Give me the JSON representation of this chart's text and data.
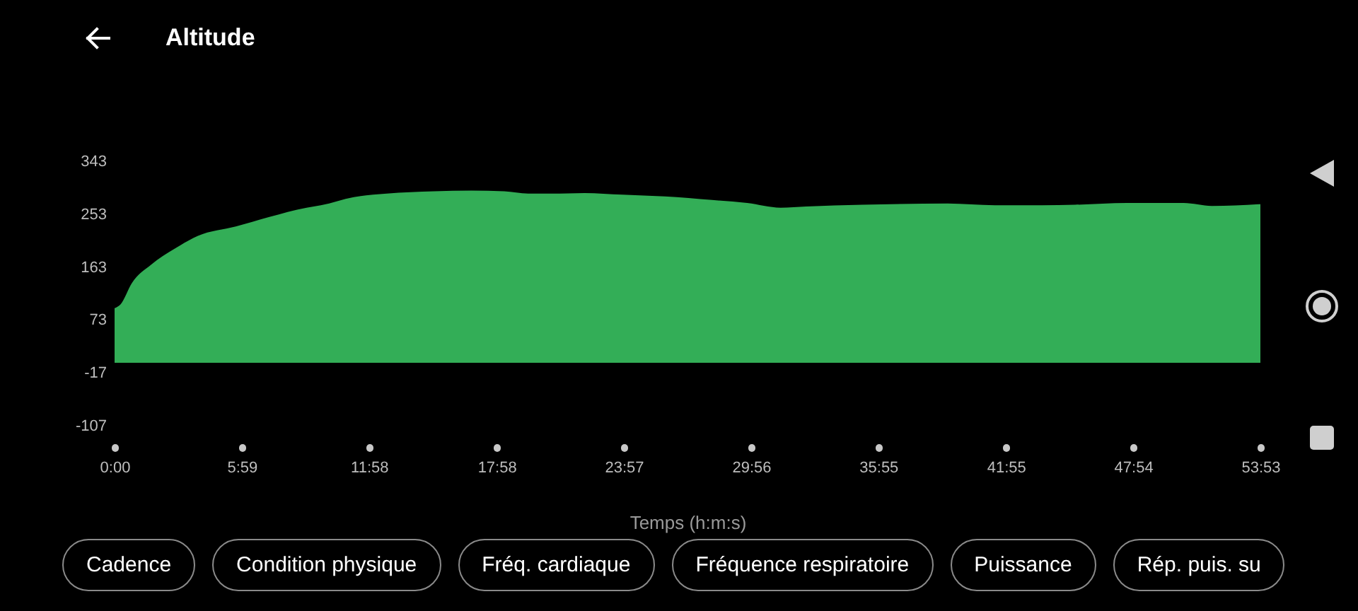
{
  "chart_data": {
    "type": "area",
    "title": "Altitude",
    "xlabel": "Temps (h:m:s)",
    "x": [
      0,
      0.27,
      0.82,
      1.72,
      2.82,
      3.92,
      5.7,
      7.25,
      9.03,
      9.7,
      11.25,
      12.8,
      15.02,
      16.78,
      18.33,
      19.45,
      20.55,
      22.1,
      23.88,
      25.88,
      28.1,
      29.75,
      31.32,
      32.53,
      35.18,
      39.18,
      41.4,
      43.62,
      45.17,
      47.62,
      50.27,
      51.6,
      53.8833
    ],
    "values": [
      93,
      99,
      136,
      167,
      194,
      216,
      232,
      248,
      264,
      268,
      282,
      288,
      292,
      293,
      292,
      288,
      288,
      289,
      286,
      283,
      277,
      272,
      264,
      266,
      269,
      271,
      268,
      268,
      269,
      272,
      272,
      267,
      270
    ],
    "color": "#33ae57",
    "xlim": [
      0,
      53.8833
    ],
    "xticks": [
      {
        "value": 0,
        "label": "0:00"
      },
      {
        "value": 5.9833,
        "label": "5:59"
      },
      {
        "value": 11.9667,
        "label": "11:58"
      },
      {
        "value": 17.9667,
        "label": "17:58"
      },
      {
        "value": 23.95,
        "label": "23:57"
      },
      {
        "value": 29.9333,
        "label": "29:56"
      },
      {
        "value": 35.9167,
        "label": "35:55"
      },
      {
        "value": 41.9167,
        "label": "41:55"
      },
      {
        "value": 47.9,
        "label": "47:54"
      },
      {
        "value": 53.8833,
        "label": "53:53"
      }
    ],
    "ylim": [
      -107,
      343
    ],
    "yticks": [
      -107,
      -17,
      73,
      163,
      253,
      343
    ],
    "grid": false,
    "annotations": [
      "Cadence",
      "Condition physique",
      "Fréq. cardiaque",
      "Fréquence respiratoire",
      "Puissance",
      "Rép. puis. su"
    ]
  }
}
